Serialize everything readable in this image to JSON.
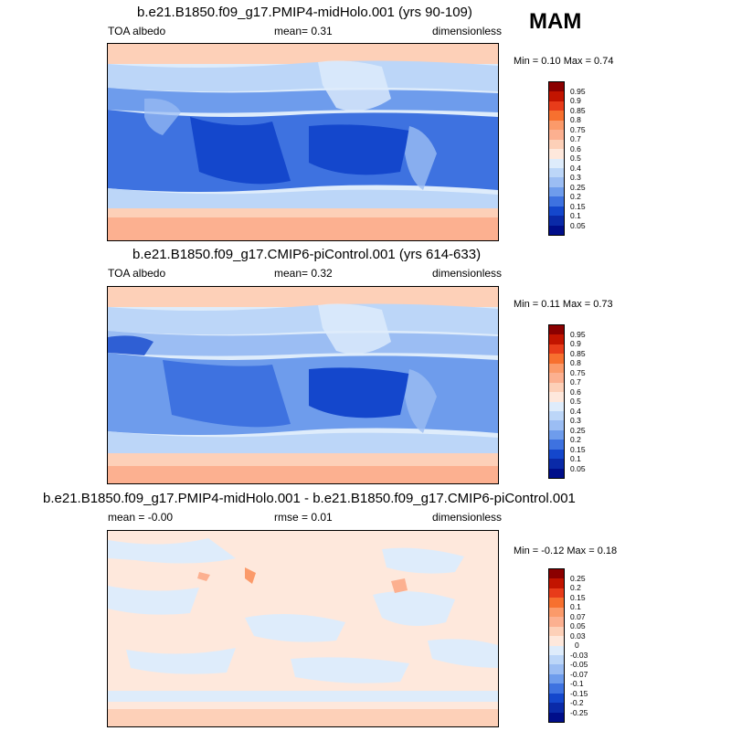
{
  "season": "MAM",
  "panels": [
    {
      "title": "b.e21.B1850.f09_g17.PMIP4-midHolo.001 (yrs 90-109)",
      "left_label": "TOA albedo",
      "center_label": "mean=   0.31",
      "right_label": "dimensionless",
      "minmax": "Min =   0.10 Max =   0.74",
      "levels": [
        "0.95",
        "0.9",
        "0.85",
        "0.8",
        "0.75",
        "0.7",
        "0.6",
        "0.5",
        "0.4",
        "0.3",
        "0.25",
        "0.2",
        "0.15",
        "0.1",
        "0.05"
      ],
      "colors": [
        "#8b0000",
        "#c21400",
        "#e83c1a",
        "#f7702f",
        "#fb9a6a",
        "#fcb090",
        "#fdd0b8",
        "#fee8dc",
        "#deecfb",
        "#bcd6f8",
        "#9bbdf3",
        "#6e9cec",
        "#3e72e0",
        "#1447cc",
        "#0a2aa8",
        "#000e8a"
      ]
    },
    {
      "title": "b.e21.B1850.f09_g17.CMIP6-piControl.001 (yrs 614-633)",
      "left_label": "TOA albedo",
      "center_label": "mean=   0.32",
      "right_label": "dimensionless",
      "minmax": "Min =   0.11 Max =   0.73",
      "levels": [
        "0.95",
        "0.9",
        "0.85",
        "0.8",
        "0.75",
        "0.7",
        "0.6",
        "0.5",
        "0.4",
        "0.3",
        "0.25",
        "0.2",
        "0.15",
        "0.1",
        "0.05"
      ],
      "colors": [
        "#8b0000",
        "#c21400",
        "#e83c1a",
        "#f7702f",
        "#fb9a6a",
        "#fcb090",
        "#fdd0b8",
        "#fee8dc",
        "#deecfb",
        "#bcd6f8",
        "#9bbdf3",
        "#6e9cec",
        "#3e72e0",
        "#1447cc",
        "#0a2aa8",
        "#000e8a"
      ]
    },
    {
      "title": "b.e21.B1850.f09_g17.PMIP4-midHolo.001 - b.e21.B1850.f09_g17.CMIP6-piControl.001",
      "left_label": "mean =  -0.00",
      "center_label": "rmse =   0.01",
      "right_label": "dimensionless",
      "minmax": "Min =  -0.12 Max =   0.18",
      "levels": [
        "0.25",
        "0.2",
        "0.15",
        "0.1",
        "0.07",
        "0.05",
        "0.03",
        "0",
        "-0.03",
        "-0.05",
        "-0.07",
        "-0.1",
        "-0.15",
        "-0.2",
        "-0.25"
      ],
      "colors": [
        "#8b0000",
        "#c21400",
        "#e83c1a",
        "#f7702f",
        "#fb9a6a",
        "#fcb090",
        "#fdd0b8",
        "#fee8dc",
        "#deecfb",
        "#bcd6f8",
        "#9bbdf3",
        "#6e9cec",
        "#3e72e0",
        "#1447cc",
        "#0a2aa8",
        "#000e8a"
      ]
    }
  ]
}
